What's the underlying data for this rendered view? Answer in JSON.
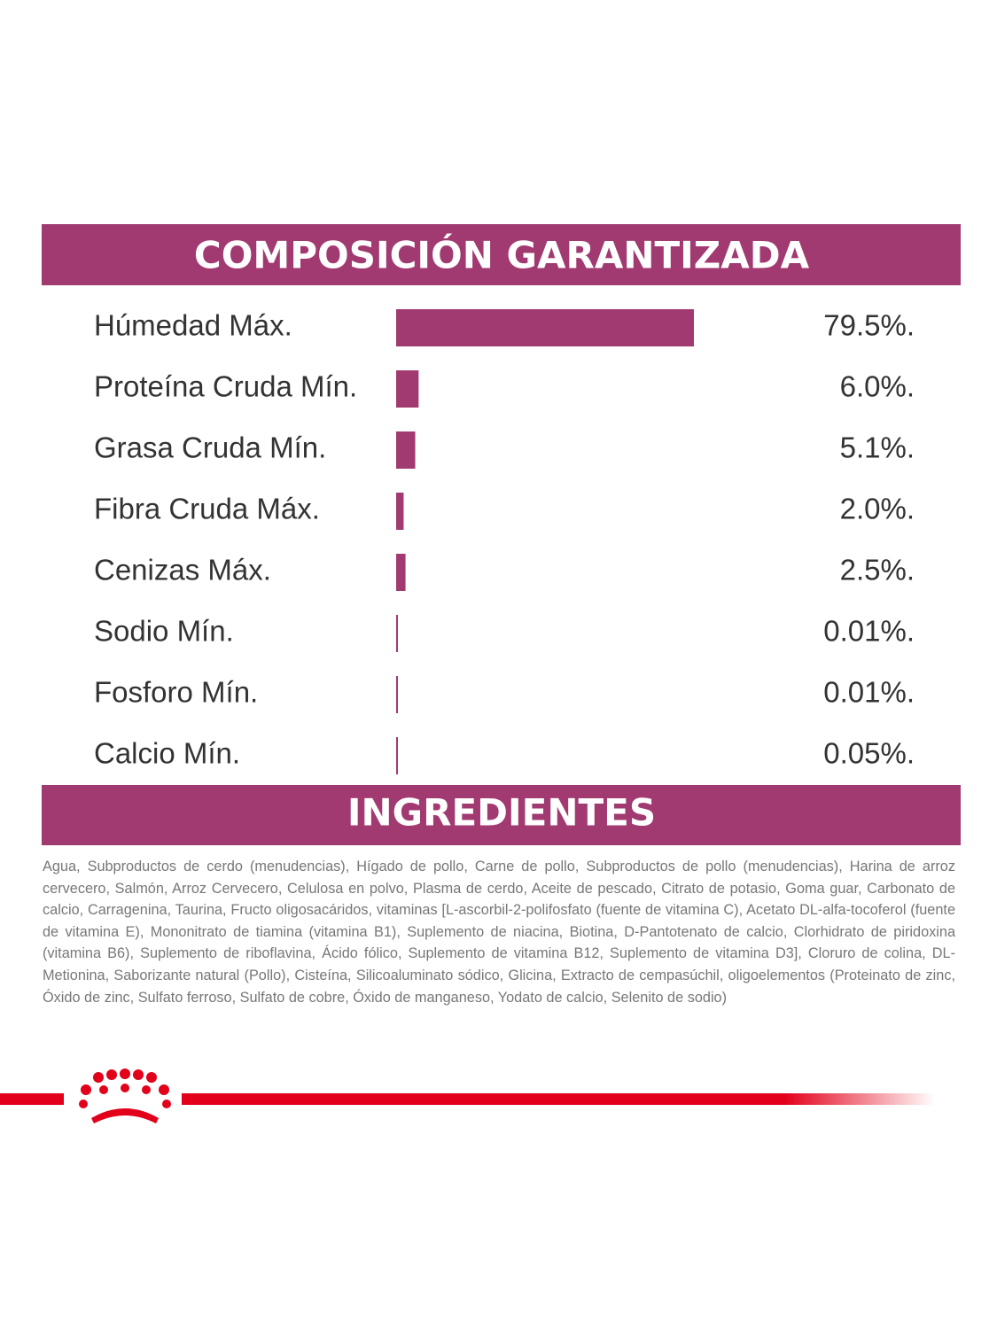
{
  "chart_data": {
    "type": "bar",
    "orientation": "horizontal",
    "title": "COMPOSICIÓN GARANTIZADA",
    "categories": [
      "Húmedad Máx.",
      "Proteína Cruda Mín.",
      "Grasa Cruda Mín.",
      "Fibra Cruda Máx.",
      "Cenizas Máx.",
      "Sodio Mín.",
      "Fosforo Mín.",
      "Calcio Mín."
    ],
    "values": [
      79.5,
      6.0,
      5.1,
      2.0,
      2.5,
      0.01,
      0.01,
      0.05
    ],
    "value_labels": [
      "79.5%.",
      "6.0%.",
      "5.1%.",
      "2.0%.",
      "2.5%.",
      "0.01%.",
      "0.01%.",
      "0.05%."
    ],
    "color": "#a23a72"
  },
  "ingredients": {
    "title": "INGREDIENTES",
    "text": "Agua, Subproductos de cerdo (menudencias), Hígado de pollo, Carne de pollo, Subproductos de pollo (menudencias), Harina de arroz cervecero, Salmón, Arroz Cervecero, Celulosa en polvo, Plasma de cerdo, Aceite de pescado, Citrato de potasio, Goma guar, Carbonato de calcio, Carragenina, Taurina, Fructo oligosacáridos, vitaminas [L-ascorbil-2-polifosfato (fuente de vitamina C), Acetato DL-alfa-tocoferol (fuente de vitamina E), Mononitrato de tiamina (vitamina B1), Suplemento de niacina, Biotina, D-Pantotenato de calcio, Clorhidrato de piridoxina (vitamina B6), Suplemento de riboflavina, Ácido fólico, Suplemento de vitamina B12, Suplemento de vitamina D3], Cloruro de colina, DL- Metionina, Saborizante natural (Pollo), Cisteína, Silicoaluminato sódico, Glicina, Extracto de cempasúchil, oligoelementos (Proteinato de zinc, Óxido de zinc, Sulfato ferroso, Sulfato de cobre, Óxido de manganeso, Yodato de calcio, Selenito de sodio)"
  }
}
